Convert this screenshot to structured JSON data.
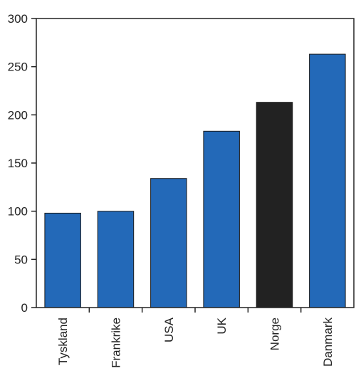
{
  "chart_data": {
    "type": "bar",
    "categories": [
      "Tyskland",
      "Frankrike",
      "USA",
      "UK",
      "Norge",
      "Danmark"
    ],
    "values": [
      98,
      100,
      134,
      183,
      213,
      263
    ],
    "bar_colors": [
      "#2369b8",
      "#2369b8",
      "#2369b8",
      "#2369b8",
      "#222222",
      "#2369b8"
    ],
    "ylim": [
      0,
      300
    ],
    "yticks": [
      0,
      50,
      100,
      150,
      200,
      250,
      300
    ],
    "grid": false,
    "legend": "none"
  }
}
